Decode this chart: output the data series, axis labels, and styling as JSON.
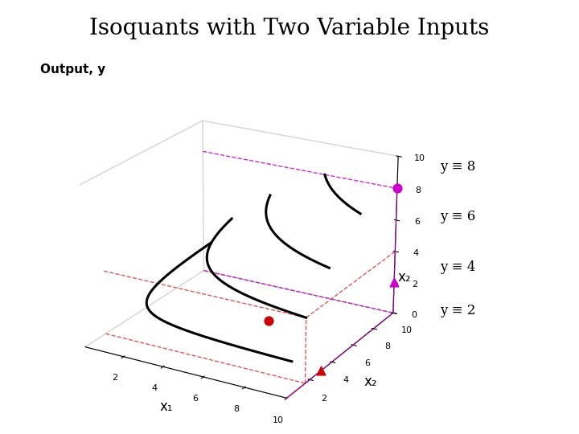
{
  "title": "Isoquants with Two Variable Inputs",
  "title_fontsize": 20,
  "background_color": "#ffffff",
  "output_label": "Output, y",
  "xlabel1": "x₁",
  "xlabel2": "x₂",
  "isoquant_levels": [
    2,
    4,
    6,
    8
  ],
  "isoquant_labels": [
    "y ≡ 2",
    "y ≡ 4",
    "y ≡ 6",
    "y ≡ 8"
  ],
  "curve_color": "#000000",
  "curve_linewidth": 2.2,
  "dashed_red_color": "#dd4444",
  "dashed_magenta_color": "#cc00cc",
  "marker_red_color": "#cc0000",
  "marker_magenta_color": "#cc00cc",
  "label_fontsize": 12,
  "output_label_fontsize": 11,
  "view_elev": 22,
  "view_azim": -60,
  "xlim": [
    0,
    10
  ],
  "ylim": [
    0,
    10
  ],
  "zlim": [
    0,
    10
  ],
  "red_point": [
    10.0,
    3.0,
    3.0
  ],
  "red_triangle_x1": 10.0,
  "red_triangle_x2": 3.0,
  "magenta_point_high": [
    10.0,
    10.0,
    8.0
  ],
  "magenta_triangle_low": [
    10.0,
    10.0,
    2.0
  ]
}
